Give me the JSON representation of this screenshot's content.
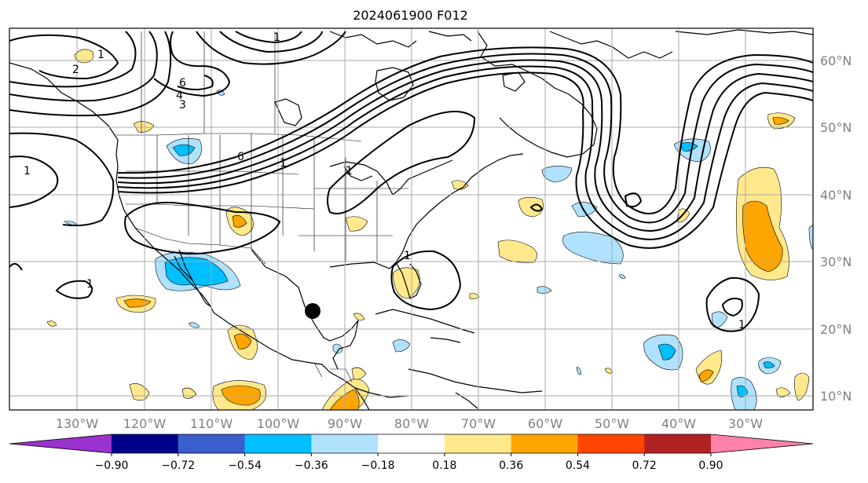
{
  "title": "2024061900 F012",
  "map": {
    "lat_labels": [
      "60°N",
      "50°N",
      "40°N",
      "30°N",
      "20°N",
      "10°N"
    ],
    "lon_labels": [
      "130°W",
      "120°W",
      "110°W",
      "100°W",
      "90°W",
      "80°W",
      "70°W",
      "60°W",
      "50°W",
      "40°W",
      "30°W"
    ],
    "contour_labels": [
      "2",
      "1",
      "4",
      "6",
      "3",
      "1",
      "6",
      "1",
      "1",
      "1",
      "1",
      "1",
      "1"
    ],
    "marker": "storm-center-dot"
  },
  "colorbar": {
    "ticks": [
      "−0.90",
      "−0.72",
      "−0.54",
      "−0.36",
      "−0.18",
      "0.18",
      "0.36",
      "0.54",
      "0.72",
      "0.90"
    ],
    "colors": [
      "#9a32cd",
      "#00008b",
      "#3a5fcd",
      "#00bfff",
      "#b0e2ff",
      "#ffffff",
      "#ffe98c",
      "#ffa500",
      "#ff4500",
      "#b22222",
      "#ff82ab"
    ]
  }
}
